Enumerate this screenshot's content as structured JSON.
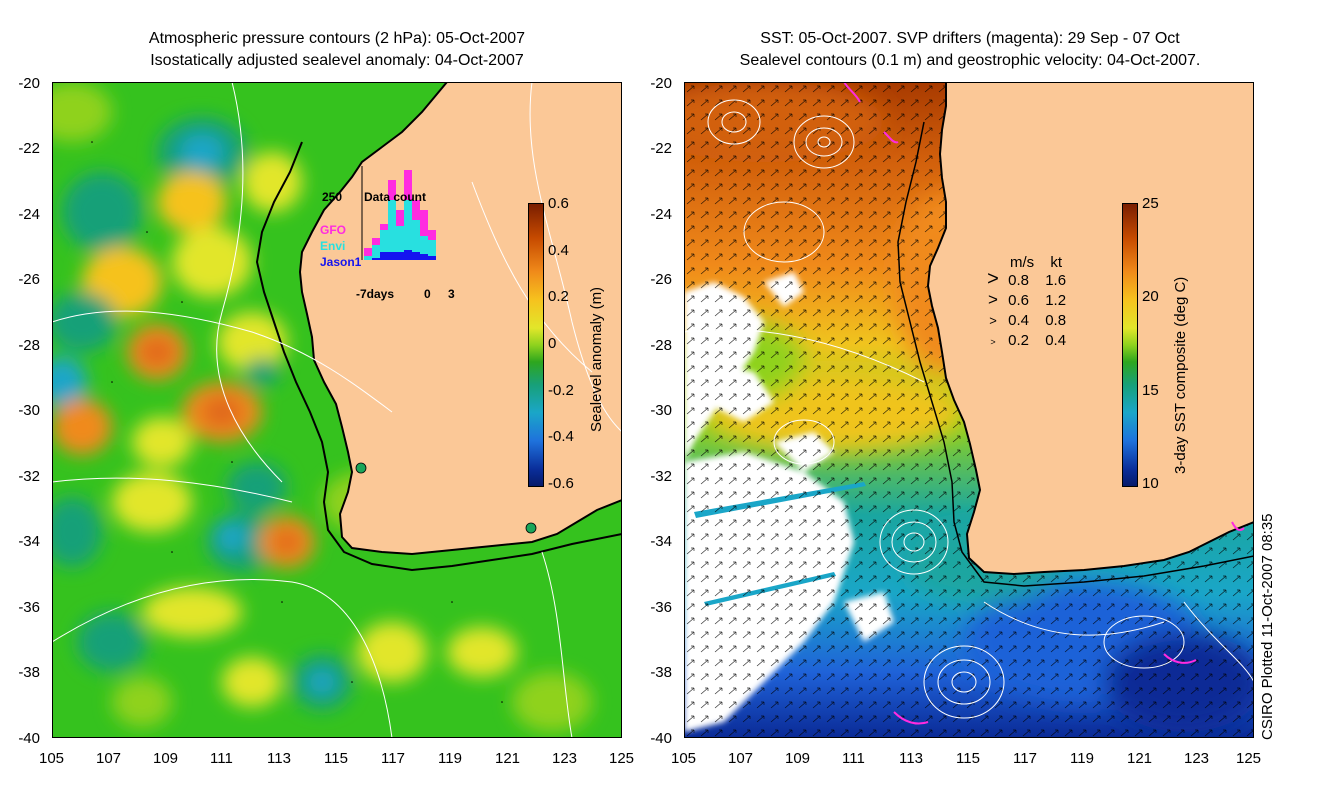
{
  "left_panel": {
    "title_line1": "Atmospheric pressure contours (2 hPa): 05-Oct-2007",
    "title_line2": "Isostatically adjusted sealevel anomaly: 04-Oct-2007",
    "y_ticks": [
      "-20",
      "-22",
      "-24",
      "-26",
      "-28",
      "-30",
      "-32",
      "-34",
      "-36",
      "-38",
      "-40"
    ],
    "x_ticks": [
      "105",
      "107",
      "109",
      "111",
      "113",
      "115",
      "117",
      "119",
      "121",
      "123",
      "125"
    ],
    "colorbar": {
      "label": "Sealevel anomaly (m)",
      "ticks": [
        "0.6",
        "0.4",
        "0.2",
        "0",
        "-0.2",
        "-0.4",
        "-0.6"
      ],
      "colors": [
        "#7a1e00",
        "#c64a00",
        "#f08a1a",
        "#f6c21e",
        "#e2e62a",
        "#8fd21e",
        "#2ea61e",
        "#18a078",
        "#1aa6c8",
        "#1f72dc",
        "#0a2e9a",
        "#061a6a"
      ]
    },
    "inset": {
      "title": "Data count",
      "max_label": "250",
      "series": [
        {
          "name": "GFO",
          "color": "#ff2be0"
        },
        {
          "name": "Envi",
          "color": "#28e0e0"
        },
        {
          "name": "Jason1",
          "color": "#1414f0"
        }
      ],
      "x_left": "-7days",
      "x_mid": "0",
      "x_right": "3"
    }
  },
  "right_panel": {
    "title_line1": "SST: 05-Oct-2007. SVP drifters (magenta): 29 Sep - 07 Oct",
    "title_line2": "Sealevel contours (0.1 m) and geostrophic velocity: 04-Oct-2007.",
    "y_ticks": [
      "-20",
      "-22",
      "-24",
      "-26",
      "-28",
      "-30",
      "-32",
      "-34",
      "-36",
      "-38",
      "-40"
    ],
    "x_ticks": [
      "105",
      "107",
      "109",
      "111",
      "113",
      "115",
      "117",
      "119",
      "121",
      "123",
      "125"
    ],
    "colorbar": {
      "label": "3-day SST composite (deg C)",
      "ticks": [
        "25",
        "20",
        "15",
        "10"
      ],
      "colors": [
        "#7a1e00",
        "#c64a00",
        "#f08a1a",
        "#f6c21e",
        "#e2e62a",
        "#8fd21e",
        "#2ea61e",
        "#18a078",
        "#1aa6c8",
        "#1f72dc",
        "#0a2e9a",
        "#061a6a"
      ]
    },
    "velocity_legend": {
      "header_ms": "m/s",
      "header_kt": "kt",
      "rows": [
        {
          "ms": "0.8",
          "kt": "1.6"
        },
        {
          "ms": "0.6",
          "kt": "1.2"
        },
        {
          "ms": "0.4",
          "kt": "0.8"
        },
        {
          "ms": "0.2",
          "kt": "0.4"
        }
      ]
    }
  },
  "credit": "CSIRO Plotted 11-Oct-2007 08:35",
  "colors": {
    "land": "#fbc897",
    "ocean_base": "#35c21e",
    "contour": "#ffffff",
    "drifter": "#ff2be0"
  }
}
